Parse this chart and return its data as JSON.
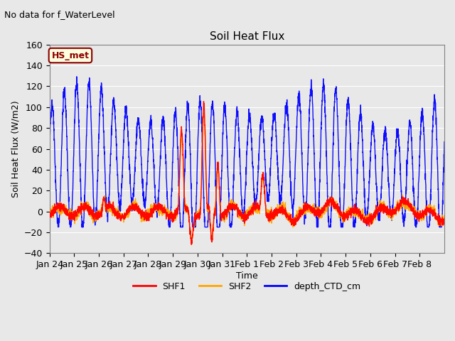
{
  "title": "Soil Heat Flux",
  "suptitle": "No data for f_WaterLevel",
  "ylabel": "Soil Heat Flux (W/m2)",
  "xlabel": "Time",
  "ylim": [
    -40,
    160
  ],
  "annotation_label": "HS_met",
  "xtick_labels": [
    "Jan 24",
    "Jan 25",
    "Jan 26",
    "Jan 27",
    "Jan 28",
    "Jan 29",
    "Jan 30",
    "Jan 31",
    "Feb 1",
    "Feb 2",
    "Feb 3",
    "Feb 4",
    "Feb 5",
    "Feb 6",
    "Feb 7",
    "Feb 8"
  ],
  "legend_entries": [
    "SHF1",
    "SHF2",
    "depth_CTD_cm"
  ],
  "legend_colors": [
    "red",
    "orange",
    "blue"
  ],
  "shf1_color": "red",
  "shf2_color": "orange",
  "depth_color": "blue",
  "background_color": "#e8e8e8",
  "n_days": 16,
  "yticks": [
    -40,
    -20,
    0,
    20,
    40,
    60,
    80,
    100,
    120,
    140,
    160
  ]
}
